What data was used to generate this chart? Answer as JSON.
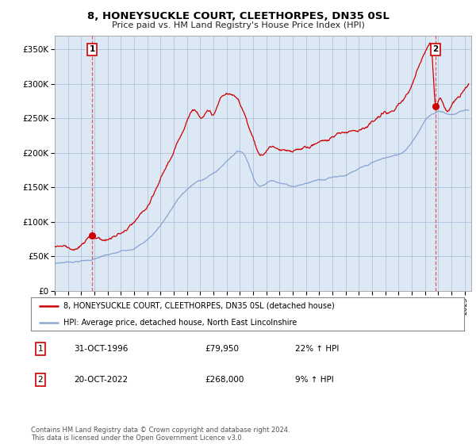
{
  "title": "8, HONEYSUCKLE COURT, CLEETHORPES, DN35 0SL",
  "subtitle": "Price paid vs. HM Land Registry's House Price Index (HPI)",
  "ylabel_ticks": [
    "£0",
    "£50K",
    "£100K",
    "£150K",
    "£200K",
    "£250K",
    "£300K",
    "£350K"
  ],
  "ytick_values": [
    0,
    50000,
    100000,
    150000,
    200000,
    250000,
    300000,
    350000
  ],
  "ylim": [
    0,
    370000
  ],
  "xlim_start": 1994.0,
  "xlim_end": 2025.5,
  "legend_line1": "8, HONEYSUCKLE COURT, CLEETHORPES, DN35 0SL (detached house)",
  "legend_line2": "HPI: Average price, detached house, North East Lincolnshire",
  "sale1_label": "1",
  "sale1_date": "31-OCT-1996",
  "sale1_price": "£79,950",
  "sale1_hpi": "22% ↑ HPI",
  "sale2_label": "2",
  "sale2_date": "20-OCT-2022",
  "sale2_price": "£268,000",
  "sale2_hpi": "9% ↑ HPI",
  "footer": "Contains HM Land Registry data © Crown copyright and database right 2024.\nThis data is licensed under the Open Government Licence v3.0.",
  "sale_color": "#cc0000",
  "hpi_color": "#7799cc",
  "vline_color": "#dd4444",
  "bg_color": "#dde8f5",
  "grid_color": "#b0c4de",
  "sale1_x": 1996.833,
  "sale1_y": 79950,
  "sale2_x": 2022.792,
  "sale2_y": 268000,
  "hpi_points": [
    [
      1994.0,
      40000
    ],
    [
      1995.0,
      42000
    ],
    [
      1996.0,
      44000
    ],
    [
      1996.833,
      46000
    ],
    [
      1997.5,
      49000
    ],
    [
      1998.5,
      52000
    ],
    [
      1999.5,
      57000
    ],
    [
      2000.5,
      66000
    ],
    [
      2001.5,
      82000
    ],
    [
      2002.5,
      108000
    ],
    [
      2003.5,
      135000
    ],
    [
      2004.5,
      152000
    ],
    [
      2005.5,
      162000
    ],
    [
      2006.5,
      175000
    ],
    [
      2007.5,
      195000
    ],
    [
      2008.0,
      200000
    ],
    [
      2008.5,
      190000
    ],
    [
      2009.0,
      165000
    ],
    [
      2009.5,
      152000
    ],
    [
      2010.0,
      155000
    ],
    [
      2010.5,
      160000
    ],
    [
      2011.0,
      158000
    ],
    [
      2011.5,
      155000
    ],
    [
      2012.0,
      153000
    ],
    [
      2012.5,
      155000
    ],
    [
      2013.0,
      157000
    ],
    [
      2013.5,
      160000
    ],
    [
      2014.0,
      163000
    ],
    [
      2014.5,
      165000
    ],
    [
      2015.0,
      168000
    ],
    [
      2015.5,
      170000
    ],
    [
      2016.0,
      172000
    ],
    [
      2016.5,
      175000
    ],
    [
      2017.0,
      178000
    ],
    [
      2017.5,
      181000
    ],
    [
      2018.0,
      185000
    ],
    [
      2018.5,
      188000
    ],
    [
      2019.0,
      191000
    ],
    [
      2019.5,
      193000
    ],
    [
      2020.0,
      195000
    ],
    [
      2020.5,
      202000
    ],
    [
      2021.0,
      215000
    ],
    [
      2021.5,
      230000
    ],
    [
      2022.0,
      245000
    ],
    [
      2022.5,
      255000
    ],
    [
      2022.792,
      258000
    ],
    [
      2023.0,
      260000
    ],
    [
      2023.5,
      258000
    ],
    [
      2024.0,
      255000
    ],
    [
      2024.5,
      258000
    ],
    [
      2025.0,
      262000
    ]
  ],
  "red_points": [
    [
      1994.0,
      64000
    ],
    [
      1995.0,
      66000
    ],
    [
      1996.0,
      68000
    ],
    [
      1996.833,
      79950
    ],
    [
      1997.5,
      78000
    ],
    [
      1998.5,
      82000
    ],
    [
      1999.5,
      91000
    ],
    [
      2000.5,
      106000
    ],
    [
      2001.5,
      130000
    ],
    [
      2002.5,
      172000
    ],
    [
      2003.5,
      210000
    ],
    [
      2004.0,
      238000
    ],
    [
      2004.5,
      255000
    ],
    [
      2005.0,
      248000
    ],
    [
      2005.5,
      258000
    ],
    [
      2006.0,
      252000
    ],
    [
      2006.5,
      272000
    ],
    [
      2007.0,
      280000
    ],
    [
      2007.5,
      275000
    ],
    [
      2008.0,
      265000
    ],
    [
      2008.5,
      245000
    ],
    [
      2009.0,
      218000
    ],
    [
      2009.5,
      195000
    ],
    [
      2010.0,
      200000
    ],
    [
      2010.5,
      207000
    ],
    [
      2011.0,
      200000
    ],
    [
      2011.5,
      196000
    ],
    [
      2012.0,
      193000
    ],
    [
      2012.5,
      197000
    ],
    [
      2013.0,
      200000
    ],
    [
      2013.5,
      205000
    ],
    [
      2014.0,
      210000
    ],
    [
      2014.5,
      213000
    ],
    [
      2015.0,
      218000
    ],
    [
      2015.5,
      222000
    ],
    [
      2016.0,
      225000
    ],
    [
      2016.5,
      230000
    ],
    [
      2017.0,
      235000
    ],
    [
      2017.5,
      240000
    ],
    [
      2018.0,
      245000
    ],
    [
      2018.5,
      250000
    ],
    [
      2019.0,
      255000
    ],
    [
      2019.5,
      258000
    ],
    [
      2020.0,
      262000
    ],
    [
      2020.5,
      272000
    ],
    [
      2021.0,
      290000
    ],
    [
      2021.5,
      315000
    ],
    [
      2022.0,
      340000
    ],
    [
      2022.3,
      355000
    ],
    [
      2022.5,
      348000
    ],
    [
      2022.792,
      268000
    ],
    [
      2023.0,
      275000
    ],
    [
      2023.5,
      265000
    ],
    [
      2024.0,
      270000
    ],
    [
      2024.5,
      280000
    ],
    [
      2025.0,
      290000
    ]
  ]
}
